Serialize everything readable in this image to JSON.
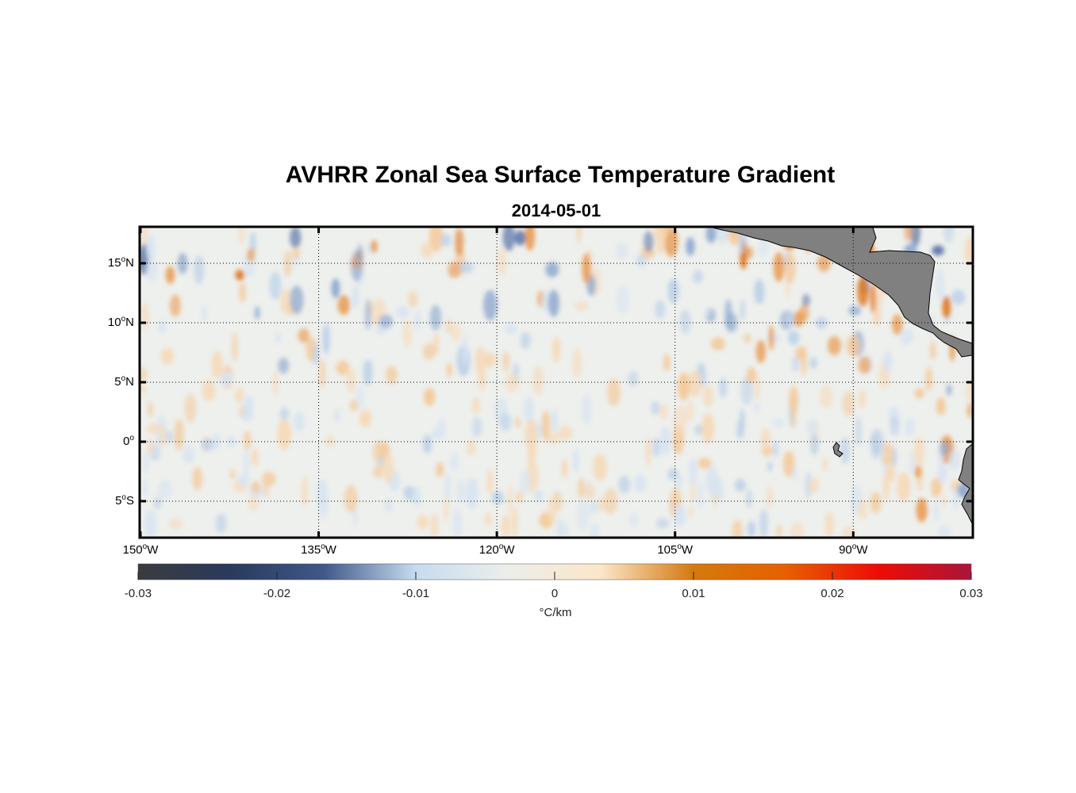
{
  "title": "AVHRR Zonal Sea Surface Temperature Gradient",
  "subtitle": "2014-05-01",
  "lat_ticks": [
    {
      "value": 15,
      "deg": "15",
      "hemi": "N"
    },
    {
      "value": 10,
      "deg": "10",
      "hemi": "N"
    },
    {
      "value": 5,
      "deg": "5",
      "hemi": "N"
    },
    {
      "value": 0,
      "deg": "0",
      "hemi": ""
    },
    {
      "value": -5,
      "deg": "5",
      "hemi": "S"
    }
  ],
  "lon_ticks": [
    {
      "value": -150,
      "deg": "150",
      "hemi": "W"
    },
    {
      "value": -135,
      "deg": "135",
      "hemi": "W"
    },
    {
      "value": -120,
      "deg": "120",
      "hemi": "W"
    },
    {
      "value": -105,
      "deg": "105",
      "hemi": "W"
    },
    {
      "value": -90,
      "deg": "90",
      "hemi": "W"
    }
  ],
  "colorbar": {
    "ticks": [
      "-0.03",
      "-0.02",
      "-0.01",
      "0",
      "0.01",
      "0.02",
      "0.03"
    ],
    "unit": "°C/km",
    "colors": [
      "#3a3b3f",
      "#2a3a5c",
      "#3f5888",
      "#c6dcef",
      "#eceeea",
      "#fbe6c9",
      "#d5790d",
      "#e66000",
      "#ee0c06",
      "#a8163a"
    ]
  },
  "map_extent": {
    "lon_min": -150,
    "lon_max": -80,
    "lat_min": -8,
    "lat_max": 18
  },
  "land_color": "#808080"
}
